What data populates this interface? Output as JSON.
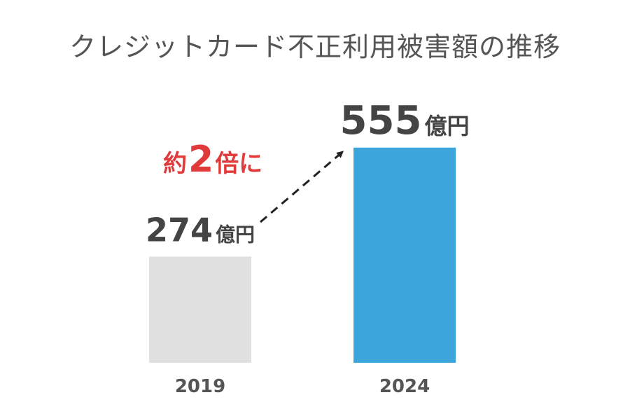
{
  "chart_data": {
    "type": "bar",
    "title": "クレジットカード不正利用被害額の推移",
    "categories": [
      "2019",
      "2024"
    ],
    "values": [
      274,
      555
    ],
    "unit": "億円",
    "ylim": [
      0,
      560
    ],
    "colors": [
      "#e0e0e0",
      "#3ba5dc"
    ],
    "annotation": {
      "prefix": "約",
      "number": "2",
      "suffix": "倍に",
      "color": "#e03a3a"
    }
  }
}
